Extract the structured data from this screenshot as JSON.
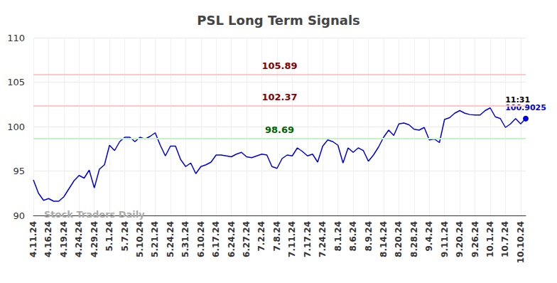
{
  "chart_data": {
    "type": "line",
    "title": "PSL Long Term Signals",
    "categories": [
      "4.11.24",
      null,
      null,
      "4.16.24",
      null,
      null,
      "4.19.24",
      null,
      null,
      "4.24.24",
      null,
      null,
      "4.29.24",
      null,
      null,
      "5.1.24",
      null,
      null,
      "5.7.24",
      null,
      null,
      "5.10.24",
      null,
      null,
      "5.21.24",
      null,
      null,
      "5.24.24",
      null,
      null,
      "5.31.24",
      null,
      null,
      "6.10.24",
      null,
      null,
      "6.17.24",
      null,
      null,
      "6.24.24",
      null,
      null,
      "6.27.24",
      null,
      null,
      "7.2.24",
      null,
      null,
      "7.8.24",
      null,
      null,
      "7.11.24",
      null,
      null,
      "7.17.24",
      null,
      null,
      "7.24.24",
      null,
      null,
      "8.1.24",
      null,
      null,
      "8.6.24",
      null,
      null,
      "8.9.24",
      null,
      null,
      "8.14.24",
      null,
      null,
      "8.20.24",
      null,
      null,
      "8.28.24",
      null,
      null,
      "9.4.24",
      null,
      null,
      "9.11.24",
      null,
      null,
      "9.20.24",
      null,
      null,
      "9.26.24",
      null,
      null,
      "10.1.24",
      null,
      null,
      "10.7.24",
      null,
      null,
      "10.10.24",
      null
    ],
    "values": [
      94.0,
      92.5,
      91.7,
      91.9,
      91.6,
      91.6,
      92.1,
      93.0,
      93.9,
      94.5,
      94.2,
      95.1,
      93.1,
      95.2,
      95.7,
      97.9,
      97.3,
      98.3,
      98.8,
      98.8,
      98.3,
      98.8,
      98.6,
      98.9,
      99.3,
      97.9,
      96.7,
      97.8,
      97.8,
      96.3,
      95.5,
      95.9,
      94.7,
      95.5,
      95.7,
      96.0,
      96.8,
      96.8,
      96.7,
      96.6,
      96.9,
      97.1,
      96.6,
      96.5,
      96.7,
      96.9,
      96.8,
      95.5,
      95.3,
      96.4,
      96.8,
      96.7,
      97.6,
      97.2,
      96.7,
      96.9,
      96.0,
      97.8,
      98.5,
      98.3,
      97.9,
      95.9,
      97.6,
      97.1,
      97.6,
      97.3,
      96.1,
      96.8,
      97.7,
      98.8,
      99.6,
      99.0,
      100.3,
      100.4,
      100.2,
      99.7,
      99.6,
      99.9,
      98.5,
      98.6,
      98.2,
      100.8,
      101.0,
      101.5,
      101.8,
      101.5,
      101.35,
      101.3,
      101.3,
      101.8,
      102.1,
      101.1,
      100.9,
      99.9,
      100.3,
      100.9,
      100.3,
      100.9025
    ],
    "color": "#0000dd",
    "ylim": [
      90,
      110
    ],
    "yticks": [
      90,
      95,
      100,
      105,
      110
    ],
    "grid": true,
    "reference_lines": [
      {
        "value": 105.89,
        "color": "#ff0000"
      },
      {
        "value": 102.37,
        "color": "#ff0000"
      },
      {
        "value": 98.69,
        "color": "#00c000"
      }
    ],
    "annotations": [
      "Stock Traders Daily",
      "11:31"
    ]
  }
}
